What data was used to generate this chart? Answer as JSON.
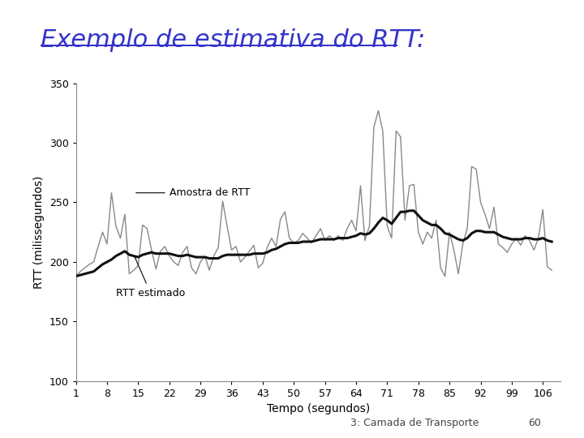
{
  "title": "Exemplo de estimativa do RTT:",
  "title_color": "#3333cc",
  "title_fontsize": 22,
  "xlabel": "Tempo (segundos)",
  "ylabel": "RTT (milissegundos)",
  "xlim": [
    1,
    110
  ],
  "ylim": [
    100,
    350
  ],
  "yticks": [
    100,
    150,
    200,
    250,
    300,
    350
  ],
  "xticks": [
    1,
    8,
    15,
    22,
    29,
    36,
    43,
    50,
    57,
    64,
    71,
    78,
    85,
    92,
    99,
    106
  ],
  "label_amostra": "Amostra de RTT",
  "label_estimado": "RTT estimado",
  "footer_text": "3: Camada de Transporte",
  "footer_number": "60",
  "bg_color": "#ffffff",
  "sample_color": "#888888",
  "estimated_color": "#111111",
  "sample_linewidth": 1.0,
  "estimated_linewidth": 2.2,
  "annotation_fontsize": 9,
  "axes_label_fontsize": 10,
  "tick_fontsize": 9,
  "rtt_sample": [
    188,
    192,
    195,
    198,
    200,
    213,
    225,
    215,
    258,
    230,
    220,
    240,
    190,
    193,
    197,
    231,
    228,
    210,
    194,
    209,
    213,
    205,
    200,
    197,
    208,
    213,
    195,
    190,
    200,
    205,
    193,
    205,
    212,
    251,
    230,
    210,
    213,
    200,
    204,
    209,
    214,
    195,
    199,
    212,
    220,
    213,
    236,
    242,
    220,
    216,
    218,
    224,
    220,
    216,
    222,
    228,
    218,
    222,
    218,
    222,
    218,
    228,
    235,
    226,
    264,
    218,
    230,
    313,
    327,
    310,
    230,
    220,
    310,
    305,
    235,
    264,
    265,
    225,
    215,
    225,
    220,
    235,
    195,
    188,
    225,
    210,
    190,
    215,
    228,
    280,
    278,
    250,
    240,
    228,
    246,
    215,
    212,
    208,
    215,
    220,
    214,
    222,
    218,
    210,
    220,
    244,
    196,
    193
  ],
  "rtt_estimated": [
    188,
    189,
    190,
    191,
    192,
    195,
    198,
    200,
    202,
    205,
    207,
    209,
    206,
    205,
    204,
    206,
    207,
    208,
    207,
    207,
    207,
    207,
    206,
    205,
    205,
    206,
    205,
    204,
    204,
    204,
    203,
    203,
    203,
    205,
    206,
    206,
    206,
    206,
    206,
    206,
    207,
    207,
    207,
    208,
    210,
    211,
    213,
    215,
    216,
    216,
    216,
    217,
    217,
    217,
    218,
    219,
    219,
    219,
    219,
    220,
    220,
    220,
    221,
    222,
    224,
    223,
    224,
    228,
    233,
    237,
    235,
    232,
    237,
    242,
    242,
    243,
    243,
    239,
    235,
    233,
    231,
    231,
    228,
    224,
    223,
    221,
    219,
    218,
    220,
    224,
    226,
    226,
    225,
    225,
    225,
    223,
    221,
    220,
    219,
    219,
    219,
    220,
    220,
    219,
    219,
    220,
    218,
    217
  ]
}
